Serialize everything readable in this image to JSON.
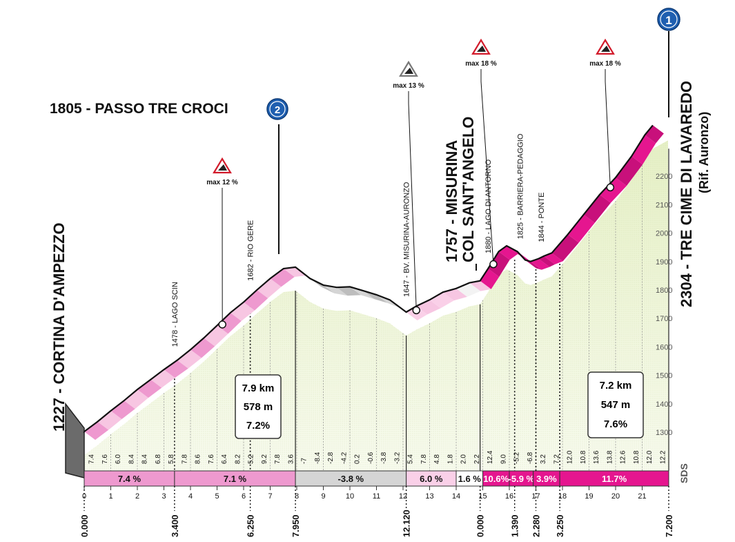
{
  "start": {
    "name": "1227 - CORTINA D'AMPEZZO"
  },
  "finish": {
    "line1": "2304 - TRE CIME DI LAVAREDO",
    "line2": "(Rif. Auronzo)",
    "badge": "1"
  },
  "pass": {
    "name": "1805 - PASSO TRE CROCI",
    "badge": "2"
  },
  "misurina": {
    "line1": "1757 - MISURINA",
    "line2": "COL SANT'ANGELO"
  },
  "waypoints": [
    {
      "label": "1478 - LAGO SCIN",
      "km": 3.4
    },
    {
      "label": "1682 - RIO GERE",
      "km": 6.25
    },
    {
      "label": "1647 - BV. MISURINA-AURONZO",
      "km": 12.12
    },
    {
      "label": "1880 - LAGO DI ANTORNO",
      "km": 15.2
    },
    {
      "label": "1825 - BARRIERA-PEDAGGIO",
      "km": 16.4
    },
    {
      "label": "1844 - PONTE",
      "km": 17.2
    }
  ],
  "climb_markers": [
    {
      "label": "max 12 %",
      "km": 5.2,
      "alt": 1735
    },
    {
      "label": "max 13 %",
      "km": 12.5,
      "alt": 1730
    },
    {
      "label": "max 18 %",
      "km": 15.4,
      "alt": 1830
    },
    {
      "label": "max 18 %",
      "km": 19.8,
      "alt": 2170
    }
  ],
  "summary_left": {
    "distance": "7.9 km",
    "gain": "578 m",
    "grade": "7.2%"
  },
  "summary_right": {
    "distance": "7.2 km",
    "gain": "547 m",
    "grade": "7.6%"
  },
  "logo": "SDS",
  "chart_data": {
    "type": "area",
    "x_unit": "km",
    "y_unit": "m",
    "xlim": [
      0,
      22
    ],
    "ylim": [
      1227,
      2304
    ],
    "x_ticks": [
      0,
      1,
      2,
      3,
      4,
      5,
      6,
      7,
      8,
      9,
      10,
      11,
      12,
      13,
      14,
      15,
      16,
      17,
      18,
      19,
      20,
      21
    ],
    "y_ticks": [
      1300,
      1400,
      1500,
      1600,
      1700,
      1800,
      1900,
      2000,
      2100,
      2200
    ],
    "profile": [
      [
        0,
        1227
      ],
      [
        0.5,
        1262
      ],
      [
        1,
        1300
      ],
      [
        1.5,
        1336
      ],
      [
        2,
        1375
      ],
      [
        2.5,
        1410
      ],
      [
        3,
        1445
      ],
      [
        3.5,
        1478
      ],
      [
        4,
        1515
      ],
      [
        4.5,
        1556
      ],
      [
        5,
        1600
      ],
      [
        5.5,
        1645
      ],
      [
        6,
        1682
      ],
      [
        6.5,
        1725
      ],
      [
        7,
        1765
      ],
      [
        7.5,
        1800
      ],
      [
        7.95,
        1805
      ],
      [
        8.5,
        1765
      ],
      [
        9,
        1742
      ],
      [
        9.5,
        1734
      ],
      [
        10,
        1736
      ],
      [
        10.5,
        1722
      ],
      [
        11,
        1708
      ],
      [
        11.5,
        1690
      ],
      [
        12.12,
        1647
      ],
      [
        12.5,
        1668
      ],
      [
        13,
        1690
      ],
      [
        13.5,
        1717
      ],
      [
        14,
        1730
      ],
      [
        14.5,
        1750
      ],
      [
        14.9,
        1757
      ],
      [
        15.2,
        1800
      ],
      [
        15.6,
        1860
      ],
      [
        15.9,
        1880
      ],
      [
        16.3,
        1860
      ],
      [
        16.6,
        1830
      ],
      [
        16.8,
        1825
      ],
      [
        17.1,
        1835
      ],
      [
        17.3,
        1844
      ],
      [
        17.6,
        1855
      ],
      [
        18.2,
        1920
      ],
      [
        18.8,
        1990
      ],
      [
        19.4,
        2060
      ],
      [
        20,
        2120
      ],
      [
        20.6,
        2195
      ],
      [
        21.1,
        2270
      ],
      [
        21.4,
        2304
      ]
    ],
    "km_grades": [
      "7.4",
      "7.6",
      "6.0",
      "8.4",
      "8.4",
      "6.8",
      "5.8",
      "7.8",
      "8.6",
      "7.6",
      "6.4",
      "8.2",
      "5.2",
      "9.2",
      "7.8",
      "3.6",
      "-7",
      "-8.4",
      "-2.8",
      "-4.2",
      "0.2",
      "-0.6",
      "-3.8",
      "-3.2",
      "5.4",
      "7.8",
      "4.8",
      "1.8",
      "2.0",
      "2.2",
      "12.4",
      "9.0",
      "-5.2",
      "-6.8",
      "3.2",
      "7.2",
      "12.0",
      "10.8",
      "13.6",
      "13.8",
      "12.6",
      "10.8",
      "12.0",
      "12.2"
    ],
    "segments": [
      {
        "label": "7.4 %",
        "from": 0,
        "to": 3.4,
        "color": "#ee99cf"
      },
      {
        "label": "7.1 %",
        "from": 3.4,
        "to": 7.95,
        "color": "#ee99cf"
      },
      {
        "label": "-3.8 %",
        "from": 7.95,
        "to": 12.12,
        "color": "#d5d5d5"
      },
      {
        "label": "6.0 %",
        "from": 12.12,
        "to": 14.0,
        "color": "#fad0e8"
      },
      {
        "label": "1.6 %",
        "from": 14.0,
        "to": 15.0,
        "color": "#ffffff"
      },
      {
        "label": "10.6%",
        "from": 15.0,
        "to": 16.0,
        "color": "#e5168f"
      },
      {
        "label": "-5.9 %",
        "from": 16.0,
        "to": 16.9,
        "color": "#e5168f"
      },
      {
        "label": "3.9%",
        "from": 16.9,
        "to": 17.9,
        "color": "#e5168f"
      },
      {
        "label": "11.7%",
        "from": 17.9,
        "to": 22.0,
        "color": "#e5168f"
      }
    ],
    "split_labels": [
      {
        "label": "0.000",
        "km": 0
      },
      {
        "label": "3.400",
        "km": 3.4
      },
      {
        "label": "6.250",
        "km": 6.25
      },
      {
        "label": "7.950",
        "km": 7.95
      },
      {
        "label": "12.120",
        "km": 12.12
      },
      {
        "label": "0.000",
        "km": 14.9
      },
      {
        "label": "1.390",
        "km": 16.2
      },
      {
        "label": "2.280",
        "km": 17.0
      },
      {
        "label": "3.250",
        "km": 17.9
      },
      {
        "label": "7.200",
        "km": 22.0
      }
    ]
  },
  "colors": {
    "pink_light": "#f7c6e2",
    "pink": "#ee99cf",
    "magenta": "#e5168f",
    "fill": "#eef5d8",
    "badge": "#1f5fb0"
  }
}
